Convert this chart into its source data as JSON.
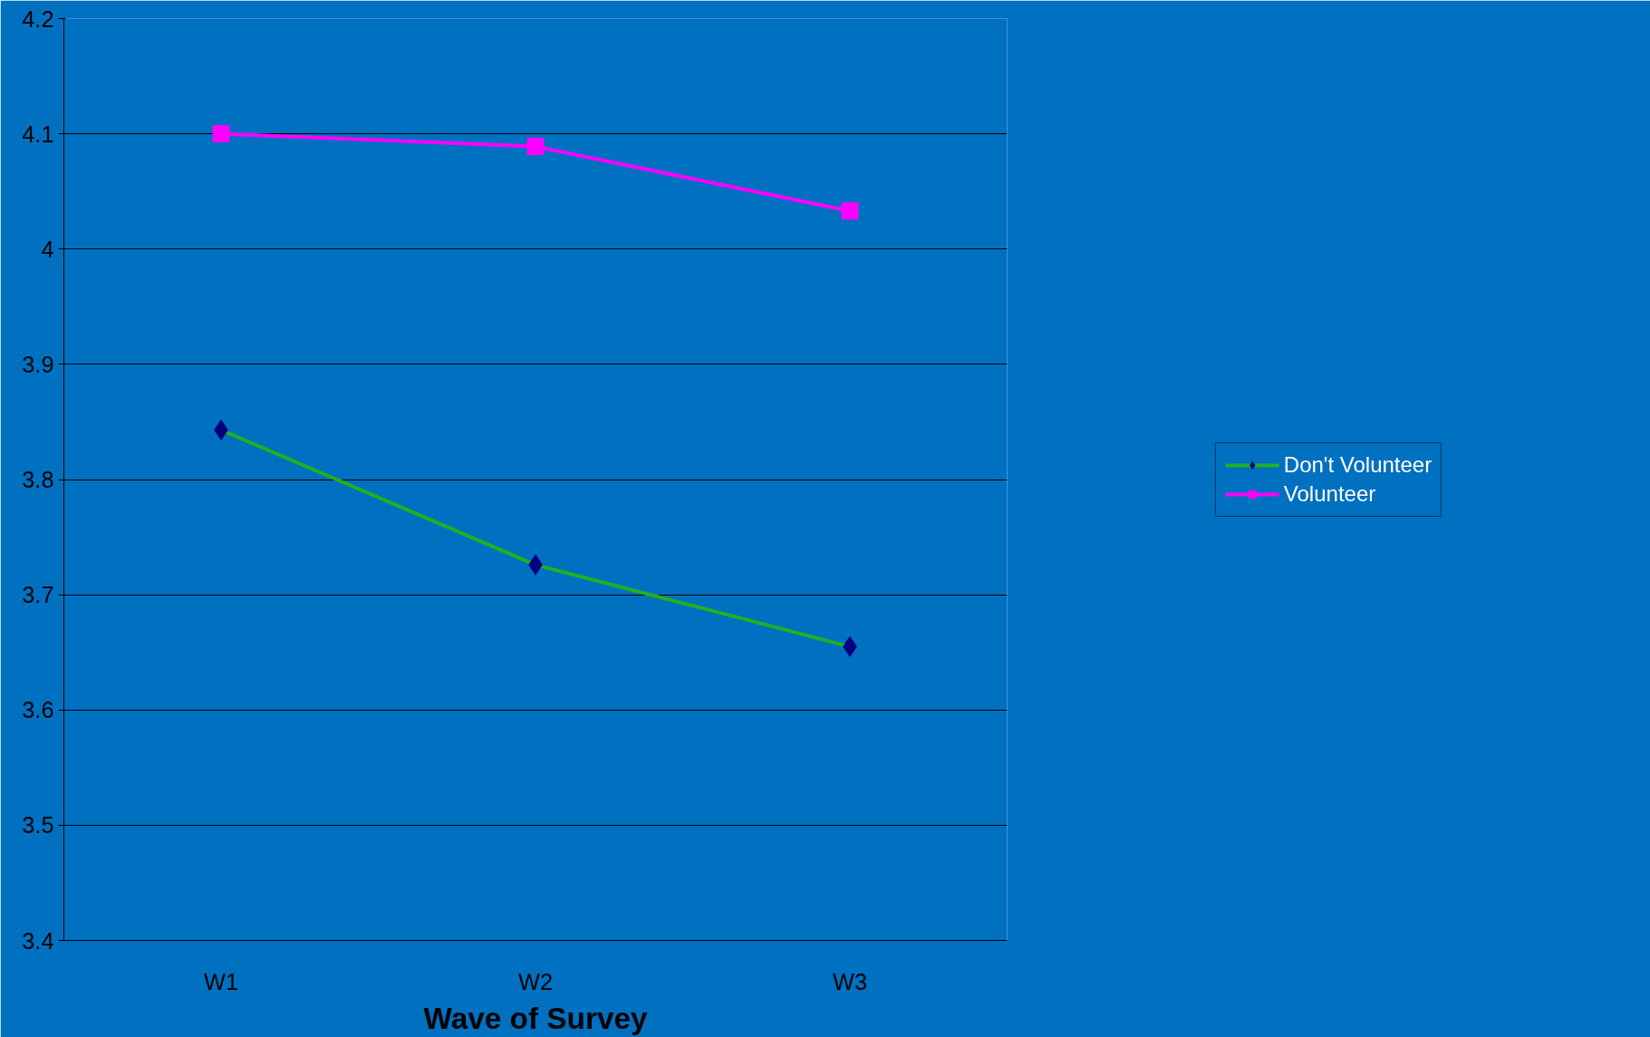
{
  "chart_data": {
    "type": "line",
    "xlabel": "Wave of Survey",
    "categories": [
      "W1",
      "W2",
      "W3"
    ],
    "series": [
      {
        "name": "Don't Volunteer",
        "color": "#22b022",
        "colors": [
          "#000080",
          "#000080",
          "#000080"
        ],
        "marker": "diamond",
        "values": [
          3.843,
          3.726,
          3.655
        ]
      },
      {
        "name": "Volunteer",
        "color": "#ff00ff",
        "marker": "square",
        "values": [
          4.1,
          4.089,
          4.033
        ]
      }
    ],
    "ylim": [
      3.4,
      4.2
    ],
    "yticks": [
      3.4,
      3.5,
      3.6,
      3.7,
      3.8,
      3.9,
      4,
      4.1,
      4.2
    ],
    "grid": "y",
    "legend": "right"
  }
}
